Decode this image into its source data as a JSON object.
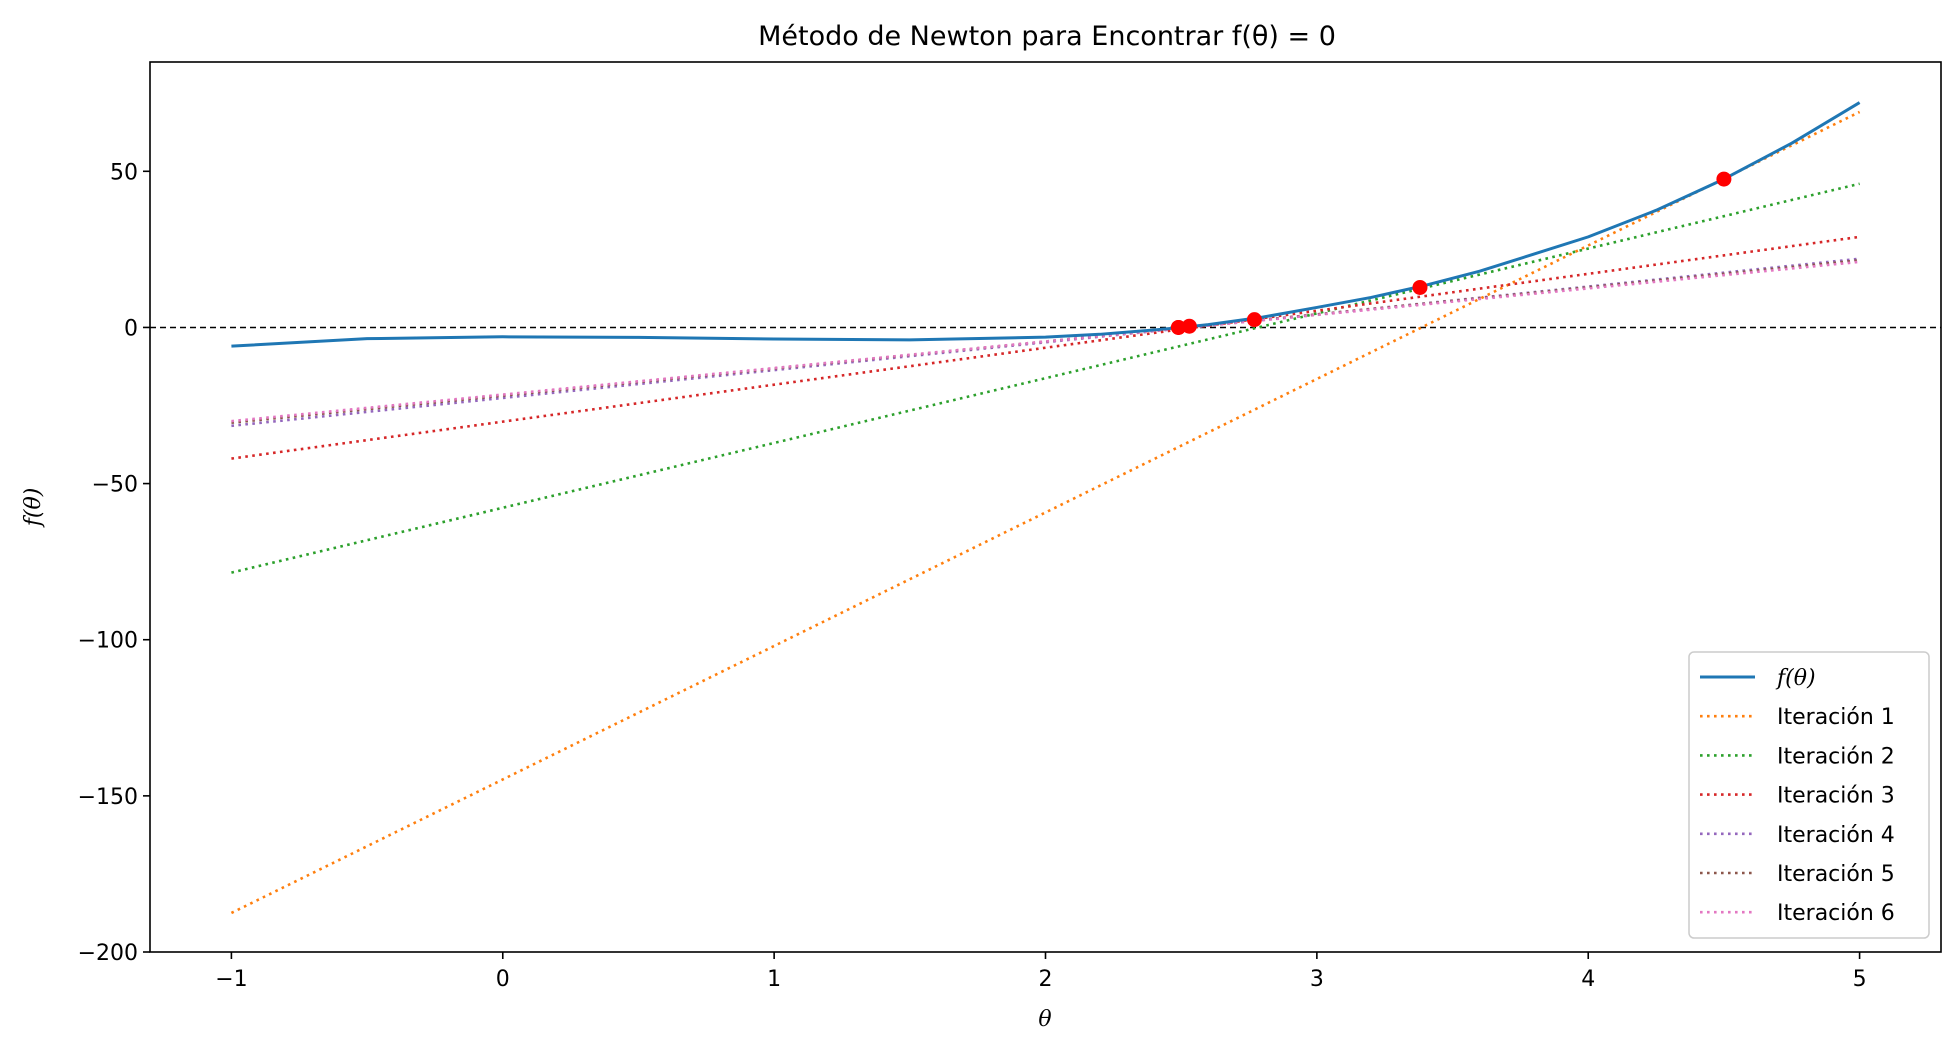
{
  "chart_data": {
    "type": "line",
    "title": "Método de Newton para Encontrar f(θ) = 0",
    "xlabel": "θ",
    "ylabel": "f(θ)",
    "xlim": [
      -1.3,
      5.3
    ],
    "ylim": [
      -200,
      85
    ],
    "xticks": [
      -1,
      0,
      1,
      2,
      3,
      4,
      5
    ],
    "yticks": [
      -200,
      -150,
      -100,
      -50,
      0,
      50
    ],
    "xtick_labels": [
      "−1",
      "0",
      "1",
      "2",
      "3",
      "4",
      "5"
    ],
    "ytick_labels": [
      "−200",
      "−150",
      "−100",
      "−50",
      "0",
      "50"
    ],
    "grid": false,
    "reference_line": {
      "y": 0,
      "style": "dashed",
      "color": "#000000"
    },
    "legend_position": "lower-right",
    "function": {
      "name": "f(θ)",
      "color": "#1f77b4",
      "x": [
        -1.0,
        -0.5,
        0.0,
        0.5,
        1.0,
        1.5,
        2.0,
        2.2,
        2.4,
        2.5,
        2.6,
        2.8,
        3.0,
        3.2,
        3.4,
        3.6,
        3.8,
        4.0,
        4.25,
        4.5,
        4.75,
        5.0
      ],
      "y": [
        -6.0,
        -3.6,
        -3.0,
        -3.2,
        -3.7,
        -4.0,
        -3.1,
        -2.2,
        -0.8,
        0.0,
        0.9,
        3.3,
        6.4,
        9.6,
        13.5,
        18.0,
        23.5,
        29.0,
        37.5,
        47.5,
        59.0,
        72.0
      ]
    },
    "series": [
      {
        "name": "Iteración 1",
        "color": "#ff7f0e",
        "x": [
          -1,
          5
        ],
        "y": [
          -187.5,
          69.0
        ]
      },
      {
        "name": "Iteración 2",
        "color": "#2ca02c",
        "x": [
          -1,
          5
        ],
        "y": [
          -78.5,
          46.0
        ]
      },
      {
        "name": "Iteración 3",
        "color": "#d62728",
        "x": [
          -1,
          5
        ],
        "y": [
          -42.0,
          29.0
        ]
      },
      {
        "name": "Iteración 4",
        "color": "#9467bd",
        "x": [
          -1,
          5
        ],
        "y": [
          -31.5,
          22.0
        ]
      },
      {
        "name": "Iteración 5",
        "color": "#8c564b",
        "x": [
          -1,
          5
        ],
        "y": [
          -30.5,
          21.5
        ]
      },
      {
        "name": "Iteración 6",
        "color": "#e377c2",
        "x": [
          -1,
          5
        ],
        "y": [
          -30.0,
          21.0
        ]
      }
    ],
    "iteration_points": {
      "color": "#ff0000",
      "x": [
        4.5,
        3.38,
        2.77,
        2.53,
        2.49,
        2.49
      ],
      "y": [
        47.5,
        12.8,
        2.5,
        0.4,
        0.0,
        0.0
      ]
    }
  }
}
